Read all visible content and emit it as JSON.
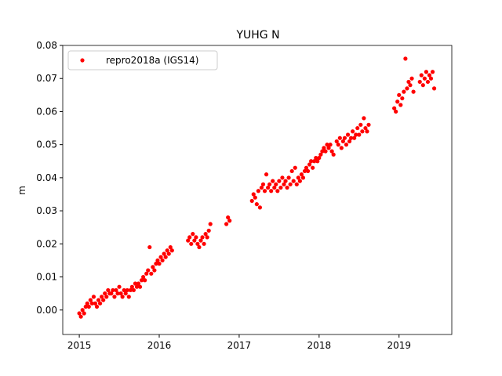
{
  "chart_data": {
    "type": "scatter",
    "title": "YUHG N",
    "y_label": "m",
    "xlim": [
      2014.793,
      2019.66
    ],
    "xticks": [
      2015,
      2016,
      2017,
      2018,
      2019
    ],
    "ylim": [
      -0.0074,
      0.08
    ],
    "yticks": [
      {
        "value": 0.0,
        "label": "0.00"
      },
      {
        "value": 0.01,
        "label": "0.01"
      },
      {
        "value": 0.02,
        "label": "0.02"
      },
      {
        "value": 0.03,
        "label": "0.03"
      },
      {
        "value": 0.04,
        "label": "0.04"
      },
      {
        "value": 0.05,
        "label": "0.05"
      },
      {
        "value": 0.06,
        "label": "0.06"
      },
      {
        "value": 0.07,
        "label": "0.07"
      },
      {
        "value": 0.08,
        "label": "0.08"
      }
    ],
    "legend": "upper left",
    "x": [
      2015.0,
      2015.02,
      2015.04,
      2015.06,
      2015.08,
      2015.1,
      2015.12,
      2015.14,
      2015.16,
      2015.18,
      2015.2,
      2015.22,
      2015.24,
      2015.26,
      2015.28,
      2015.3,
      2015.32,
      2015.34,
      2015.36,
      2015.38,
      2015.4,
      2015.42,
      2015.44,
      2015.46,
      2015.48,
      2015.5,
      2015.52,
      2015.54,
      2015.56,
      2015.58,
      2015.6,
      2015.62,
      2015.64,
      2015.66,
      2015.68,
      2015.7,
      2015.72,
      2015.74,
      2015.76,
      2015.78,
      2015.8,
      2015.82,
      2015.84,
      2015.86,
      2015.88,
      2015.9,
      2015.92,
      2015.94,
      2015.96,
      2015.98,
      2016.0,
      2016.02,
      2016.04,
      2016.06,
      2016.08,
      2016.1,
      2016.12,
      2016.14,
      2016.16,
      2016.36,
      2016.38,
      2016.4,
      2016.42,
      2016.44,
      2016.46,
      2016.48,
      2016.5,
      2016.52,
      2016.54,
      2016.56,
      2016.58,
      2016.6,
      2016.62,
      2016.64,
      2016.84,
      2016.86,
      2016.88,
      2017.16,
      2017.18,
      2017.2,
      2017.22,
      2017.24,
      2017.26,
      2017.28,
      2017.3,
      2017.32,
      2017.34,
      2017.36,
      2017.38,
      2017.4,
      2017.42,
      2017.44,
      2017.46,
      2017.48,
      2017.5,
      2017.52,
      2017.54,
      2017.56,
      2017.58,
      2017.6,
      2017.62,
      2017.64,
      2017.66,
      2017.68,
      2017.7,
      2017.72,
      2017.74,
      2017.76,
      2017.78,
      2017.8,
      2017.82,
      2017.84,
      2017.86,
      2017.88,
      2017.9,
      2017.92,
      2017.94,
      2017.96,
      2017.98,
      2018.0,
      2018.02,
      2018.04,
      2018.06,
      2018.08,
      2018.1,
      2018.12,
      2018.14,
      2018.16,
      2018.18,
      2018.22,
      2018.24,
      2018.26,
      2018.28,
      2018.3,
      2018.32,
      2018.34,
      2018.36,
      2018.38,
      2018.4,
      2018.42,
      2018.44,
      2018.46,
      2018.48,
      2018.5,
      2018.52,
      2018.54,
      2018.56,
      2018.58,
      2018.6,
      2018.62,
      2018.94,
      2018.96,
      2018.98,
      2019.0,
      2019.02,
      2019.04,
      2019.06,
      2019.08,
      2019.1,
      2019.12,
      2019.14,
      2019.16,
      2019.18,
      2019.26,
      2019.28,
      2019.3,
      2019.32,
      2019.34,
      2019.36,
      2019.38,
      2019.4,
      2019.42,
      2019.44
    ],
    "series": [
      {
        "name": "repro2018a (IGS14)",
        "color": "#ff0000",
        "values": [
          -0.001,
          -0.002,
          0.0,
          -0.001,
          0.001,
          0.002,
          0.001,
          0.003,
          0.002,
          0.004,
          0.002,
          0.001,
          0.003,
          0.002,
          0.004,
          0.003,
          0.005,
          0.004,
          0.006,
          0.005,
          0.005,
          0.006,
          0.004,
          0.006,
          0.005,
          0.007,
          0.005,
          0.004,
          0.006,
          0.005,
          0.006,
          0.004,
          0.006,
          0.007,
          0.006,
          0.008,
          0.007,
          0.008,
          0.007,
          0.009,
          0.01,
          0.009,
          0.011,
          0.012,
          0.019,
          0.011,
          0.013,
          0.012,
          0.014,
          0.015,
          0.014,
          0.016,
          0.015,
          0.017,
          0.016,
          0.018,
          0.017,
          0.019,
          0.018,
          0.021,
          0.022,
          0.02,
          0.023,
          0.021,
          0.022,
          0.02,
          0.019,
          0.021,
          0.022,
          0.02,
          0.023,
          0.022,
          0.024,
          0.026,
          0.026,
          0.028,
          0.027,
          0.033,
          0.035,
          0.034,
          0.032,
          0.036,
          0.031,
          0.037,
          0.038,
          0.036,
          0.041,
          0.037,
          0.038,
          0.036,
          0.039,
          0.037,
          0.038,
          0.036,
          0.039,
          0.037,
          0.04,
          0.038,
          0.039,
          0.037,
          0.04,
          0.038,
          0.042,
          0.039,
          0.043,
          0.038,
          0.04,
          0.039,
          0.041,
          0.04,
          0.042,
          0.043,
          0.042,
          0.044,
          0.045,
          0.043,
          0.045,
          0.046,
          0.045,
          0.046,
          0.047,
          0.048,
          0.049,
          0.048,
          0.05,
          0.049,
          0.05,
          0.048,
          0.047,
          0.051,
          0.05,
          0.052,
          0.049,
          0.051,
          0.052,
          0.05,
          0.053,
          0.051,
          0.052,
          0.054,
          0.052,
          0.053,
          0.055,
          0.053,
          0.056,
          0.054,
          0.058,
          0.055,
          0.054,
          0.056,
          0.061,
          0.06,
          0.063,
          0.065,
          0.062,
          0.064,
          0.066,
          0.076,
          0.067,
          0.069,
          0.068,
          0.07,
          0.066,
          0.069,
          0.071,
          0.068,
          0.07,
          0.072,
          0.069,
          0.071,
          0.07,
          0.072,
          0.067
        ]
      }
    ]
  }
}
